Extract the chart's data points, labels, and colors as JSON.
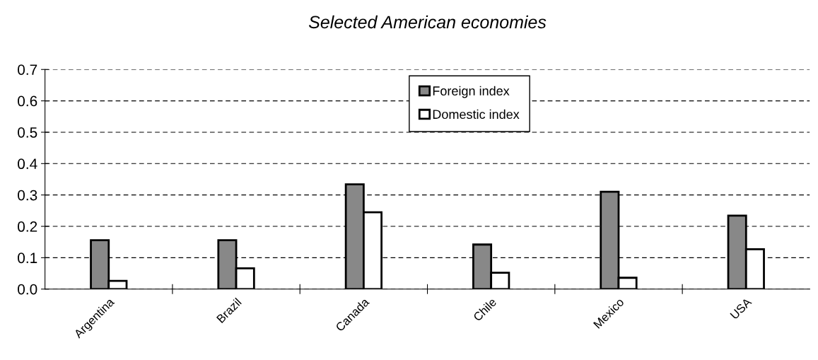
{
  "chart_data": {
    "type": "bar",
    "title": "Selected American economies",
    "categories": [
      "Argentina",
      "Brazil",
      "Canada",
      "Chile",
      "Mexico",
      "USA"
    ],
    "series": [
      {
        "name": "Foreign index",
        "color": "#888888",
        "values": [
          0.156,
          0.156,
          0.334,
          0.142,
          0.31,
          0.234
        ]
      },
      {
        "name": "Domestic index",
        "color": "#ffffff",
        "values": [
          0.026,
          0.066,
          0.245,
          0.052,
          0.036,
          0.127
        ]
      }
    ],
    "ylim": [
      0,
      0.7
    ],
    "yticks": [
      {
        "value": 0,
        "label": "0.0"
      },
      0.1,
      0.2,
      0.3,
      0.4,
      0.5,
      0.6,
      0.7
    ],
    "grid": "y",
    "legend": "top"
  }
}
